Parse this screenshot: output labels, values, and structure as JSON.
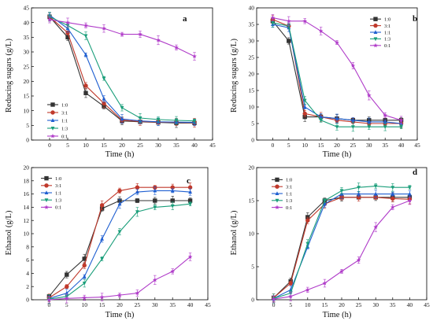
{
  "figure": {
    "bg": "#ffffff"
  },
  "chart_data": [
    {
      "type": "line",
      "panel_label": "a",
      "xlabel": "Time (h)",
      "ylabel": "Reducing sugars (g/L)",
      "xlim": [
        -5,
        45
      ],
      "ylim": [
        0,
        45
      ],
      "xticks": [
        0,
        5,
        10,
        15,
        20,
        25,
        30,
        35,
        40,
        45
      ],
      "yticks": [
        0,
        5,
        10,
        15,
        20,
        25,
        30,
        35,
        40,
        45
      ],
      "legend_placement": "lower-left",
      "x": [
        0,
        5,
        10,
        15,
        20,
        25,
        30,
        35,
        40
      ],
      "series": [
        {
          "name": "1:0",
          "color": "#333333",
          "marker": "square",
          "values": [
            42.0,
            35.0,
            16.0,
            11.5,
            6.5,
            6.2,
            6.0,
            5.8,
            5.8
          ]
        },
        {
          "name": "3:1",
          "color": "#c0392b",
          "marker": "circle",
          "values": [
            42.0,
            36.5,
            18.5,
            12.5,
            6.8,
            6.3,
            6.1,
            6.0,
            5.9
          ]
        },
        {
          "name": "1:1",
          "color": "#1f5fd1",
          "marker": "triangle-up",
          "values": [
            42.5,
            38.0,
            29.0,
            14.0,
            7.2,
            6.5,
            6.2,
            6.1,
            6.0
          ]
        },
        {
          "name": "1:3",
          "color": "#1a9e7a",
          "marker": "triangle-down",
          "values": [
            42.0,
            39.0,
            35.5,
            21.0,
            11.0,
            7.5,
            7.0,
            6.7,
            6.5
          ]
        },
        {
          "name": "0:1",
          "color": "#b03cc9",
          "marker": "star",
          "values": [
            41.0,
            40.0,
            39.0,
            38.0,
            36.0,
            36.0,
            34.0,
            31.5,
            28.5
          ]
        }
      ]
    },
    {
      "type": "line",
      "panel_label": "b",
      "xlabel": "Time (h)",
      "ylabel": "Reducing sugars (g/L)",
      "xlim": [
        -5,
        45
      ],
      "ylim": [
        0,
        40
      ],
      "xticks": [
        0,
        5,
        10,
        15,
        20,
        25,
        30,
        35,
        40,
        45
      ],
      "yticks": [
        0,
        5,
        10,
        15,
        20,
        25,
        30,
        35,
        40
      ],
      "legend_placement": "top-right",
      "x": [
        0,
        5,
        10,
        15,
        20,
        25,
        30,
        35,
        40
      ],
      "series": [
        {
          "name": "1:0",
          "color": "#333333",
          "marker": "square",
          "values": [
            36.0,
            30.0,
            7.0,
            7.0,
            6.5,
            6.0,
            6.0,
            6.0,
            6.0
          ]
        },
        {
          "name": "3:1",
          "color": "#c0392b",
          "marker": "circle",
          "values": [
            36.5,
            34.5,
            8.0,
            7.0,
            6.0,
            5.5,
            5.0,
            5.0,
            5.0
          ]
        },
        {
          "name": "1:1",
          "color": "#1f5fd1",
          "marker": "triangle-up",
          "values": [
            35.0,
            34.0,
            10.0,
            7.0,
            6.5,
            6.0,
            5.5,
            5.5,
            5.0
          ]
        },
        {
          "name": "1:3",
          "color": "#1a9e7a",
          "marker": "triangle-down",
          "values": [
            35.5,
            34.5,
            12.0,
            6.0,
            4.0,
            4.0,
            4.0,
            4.0,
            4.0
          ]
        },
        {
          "name": "0:1",
          "color": "#b03cc9",
          "marker": "star",
          "values": [
            37.0,
            36.0,
            36.0,
            33.0,
            29.5,
            22.5,
            13.5,
            7.5,
            6.0
          ]
        }
      ]
    },
    {
      "type": "line",
      "panel_label": "c",
      "xlabel": "Time (h)",
      "ylabel": "Ethanol (g/L)",
      "xlim": [
        -5,
        45
      ],
      "ylim": [
        0,
        20
      ],
      "xticks": [
        0,
        5,
        10,
        15,
        20,
        25,
        30,
        35,
        40,
        45
      ],
      "yticks": [
        0,
        2,
        4,
        6,
        8,
        10,
        12,
        14,
        16,
        18,
        20
      ],
      "legend_placement": "top-left",
      "x": [
        0,
        5,
        10,
        15,
        20,
        25,
        30,
        35,
        40
      ],
      "series": [
        {
          "name": "1:0",
          "color": "#333333",
          "marker": "square",
          "values": [
            0.5,
            3.8,
            6.2,
            13.8,
            15.0,
            15.0,
            15.0,
            15.0,
            15.0
          ]
        },
        {
          "name": "3:1",
          "color": "#c0392b",
          "marker": "circle",
          "values": [
            0.3,
            2.0,
            5.2,
            14.3,
            16.5,
            17.0,
            17.0,
            17.0,
            17.0
          ]
        },
        {
          "name": "1:1",
          "color": "#1f5fd1",
          "marker": "triangle-up",
          "values": [
            0.2,
            1.0,
            3.5,
            9.2,
            14.5,
            16.3,
            16.5,
            16.5,
            16.3
          ]
        },
        {
          "name": "1:3",
          "color": "#1a9e7a",
          "marker": "triangle-down",
          "values": [
            0.1,
            0.5,
            2.5,
            6.2,
            10.3,
            13.3,
            14.0,
            14.2,
            14.5
          ]
        },
        {
          "name": "0:1",
          "color": "#b03cc9",
          "marker": "star",
          "values": [
            0.0,
            0.2,
            0.3,
            0.4,
            0.7,
            1.0,
            3.0,
            4.3,
            6.5
          ]
        }
      ]
    },
    {
      "type": "line",
      "panel_label": "d",
      "xlabel": "Time (h)",
      "ylabel": "Ethanol (g/L)",
      "xlim": [
        -5,
        45
      ],
      "ylim": [
        0,
        20
      ],
      "xticks": [
        0,
        5,
        10,
        15,
        20,
        25,
        30,
        35,
        40,
        45
      ],
      "yticks": [
        0,
        5,
        10,
        15,
        20
      ],
      "legend_placement": "top-left",
      "x": [
        0,
        5,
        10,
        15,
        20,
        25,
        30,
        35,
        40
      ],
      "series": [
        {
          "name": "1:0",
          "color": "#333333",
          "marker": "square",
          "values": [
            0.3,
            2.8,
            12.5,
            15.0,
            15.5,
            15.5,
            15.5,
            15.5,
            15.5
          ]
        },
        {
          "name": "3:1",
          "color": "#c0392b",
          "marker": "circle",
          "values": [
            0.3,
            2.5,
            12.0,
            14.5,
            15.5,
            15.5,
            15.5,
            15.3,
            15.2
          ]
        },
        {
          "name": "1:1",
          "color": "#1f5fd1",
          "marker": "triangle-up",
          "values": [
            0.2,
            1.5,
            8.0,
            14.5,
            16.0,
            16.0,
            16.0,
            16.0,
            16.0
          ]
        },
        {
          "name": "1:3",
          "color": "#1a9e7a",
          "marker": "triangle-down",
          "values": [
            0.2,
            1.0,
            8.5,
            15.0,
            16.5,
            17.0,
            17.2,
            17.0,
            17.0
          ]
        },
        {
          "name": "0:1",
          "color": "#b03cc9",
          "marker": "star",
          "values": [
            0.1,
            0.5,
            1.5,
            2.5,
            4.3,
            6.0,
            11.0,
            14.0,
            15.0
          ]
        }
      ]
    }
  ]
}
